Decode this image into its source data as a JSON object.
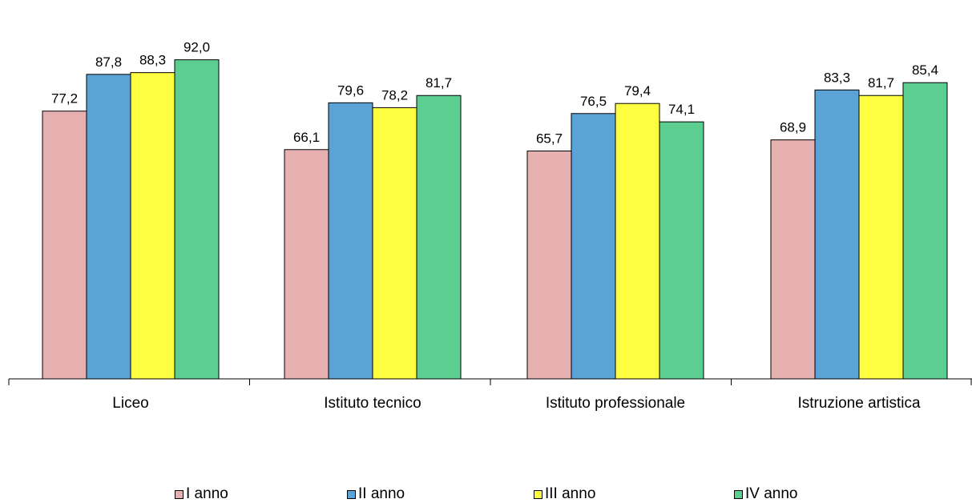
{
  "chart_data": {
    "type": "bar",
    "categories": [
      "Liceo",
      "Istituto tecnico",
      "Istituto professionale",
      "Istruzione artistica"
    ],
    "series": [
      {
        "name": "I anno",
        "color": "#e6b0b0",
        "values": [
          77.2,
          66.1,
          65.7,
          68.9
        ]
      },
      {
        "name": "II anno",
        "color": "#5ba2d6",
        "values": [
          87.8,
          79.6,
          76.5,
          83.3
        ]
      },
      {
        "name": "III anno",
        "color": "#ffff42",
        "values": [
          88.3,
          78.2,
          79.4,
          81.7
        ]
      },
      {
        "name": "IV anno",
        "color": "#5ccf90",
        "values": [
          92.0,
          81.7,
          74.1,
          85.4
        ]
      }
    ],
    "data_labels": [
      [
        "77,2",
        "66,1",
        "65,7",
        "68,9"
      ],
      [
        "87,8",
        "79,6",
        "76,5",
        "83,3"
      ],
      [
        "88,3",
        "78,2",
        "79,4",
        "81,7"
      ],
      [
        "92,0",
        "81,7",
        "74,1",
        "85,4"
      ]
    ],
    "ylim": [
      0,
      100
    ],
    "grid": false,
    "legend_position": "bottom"
  }
}
